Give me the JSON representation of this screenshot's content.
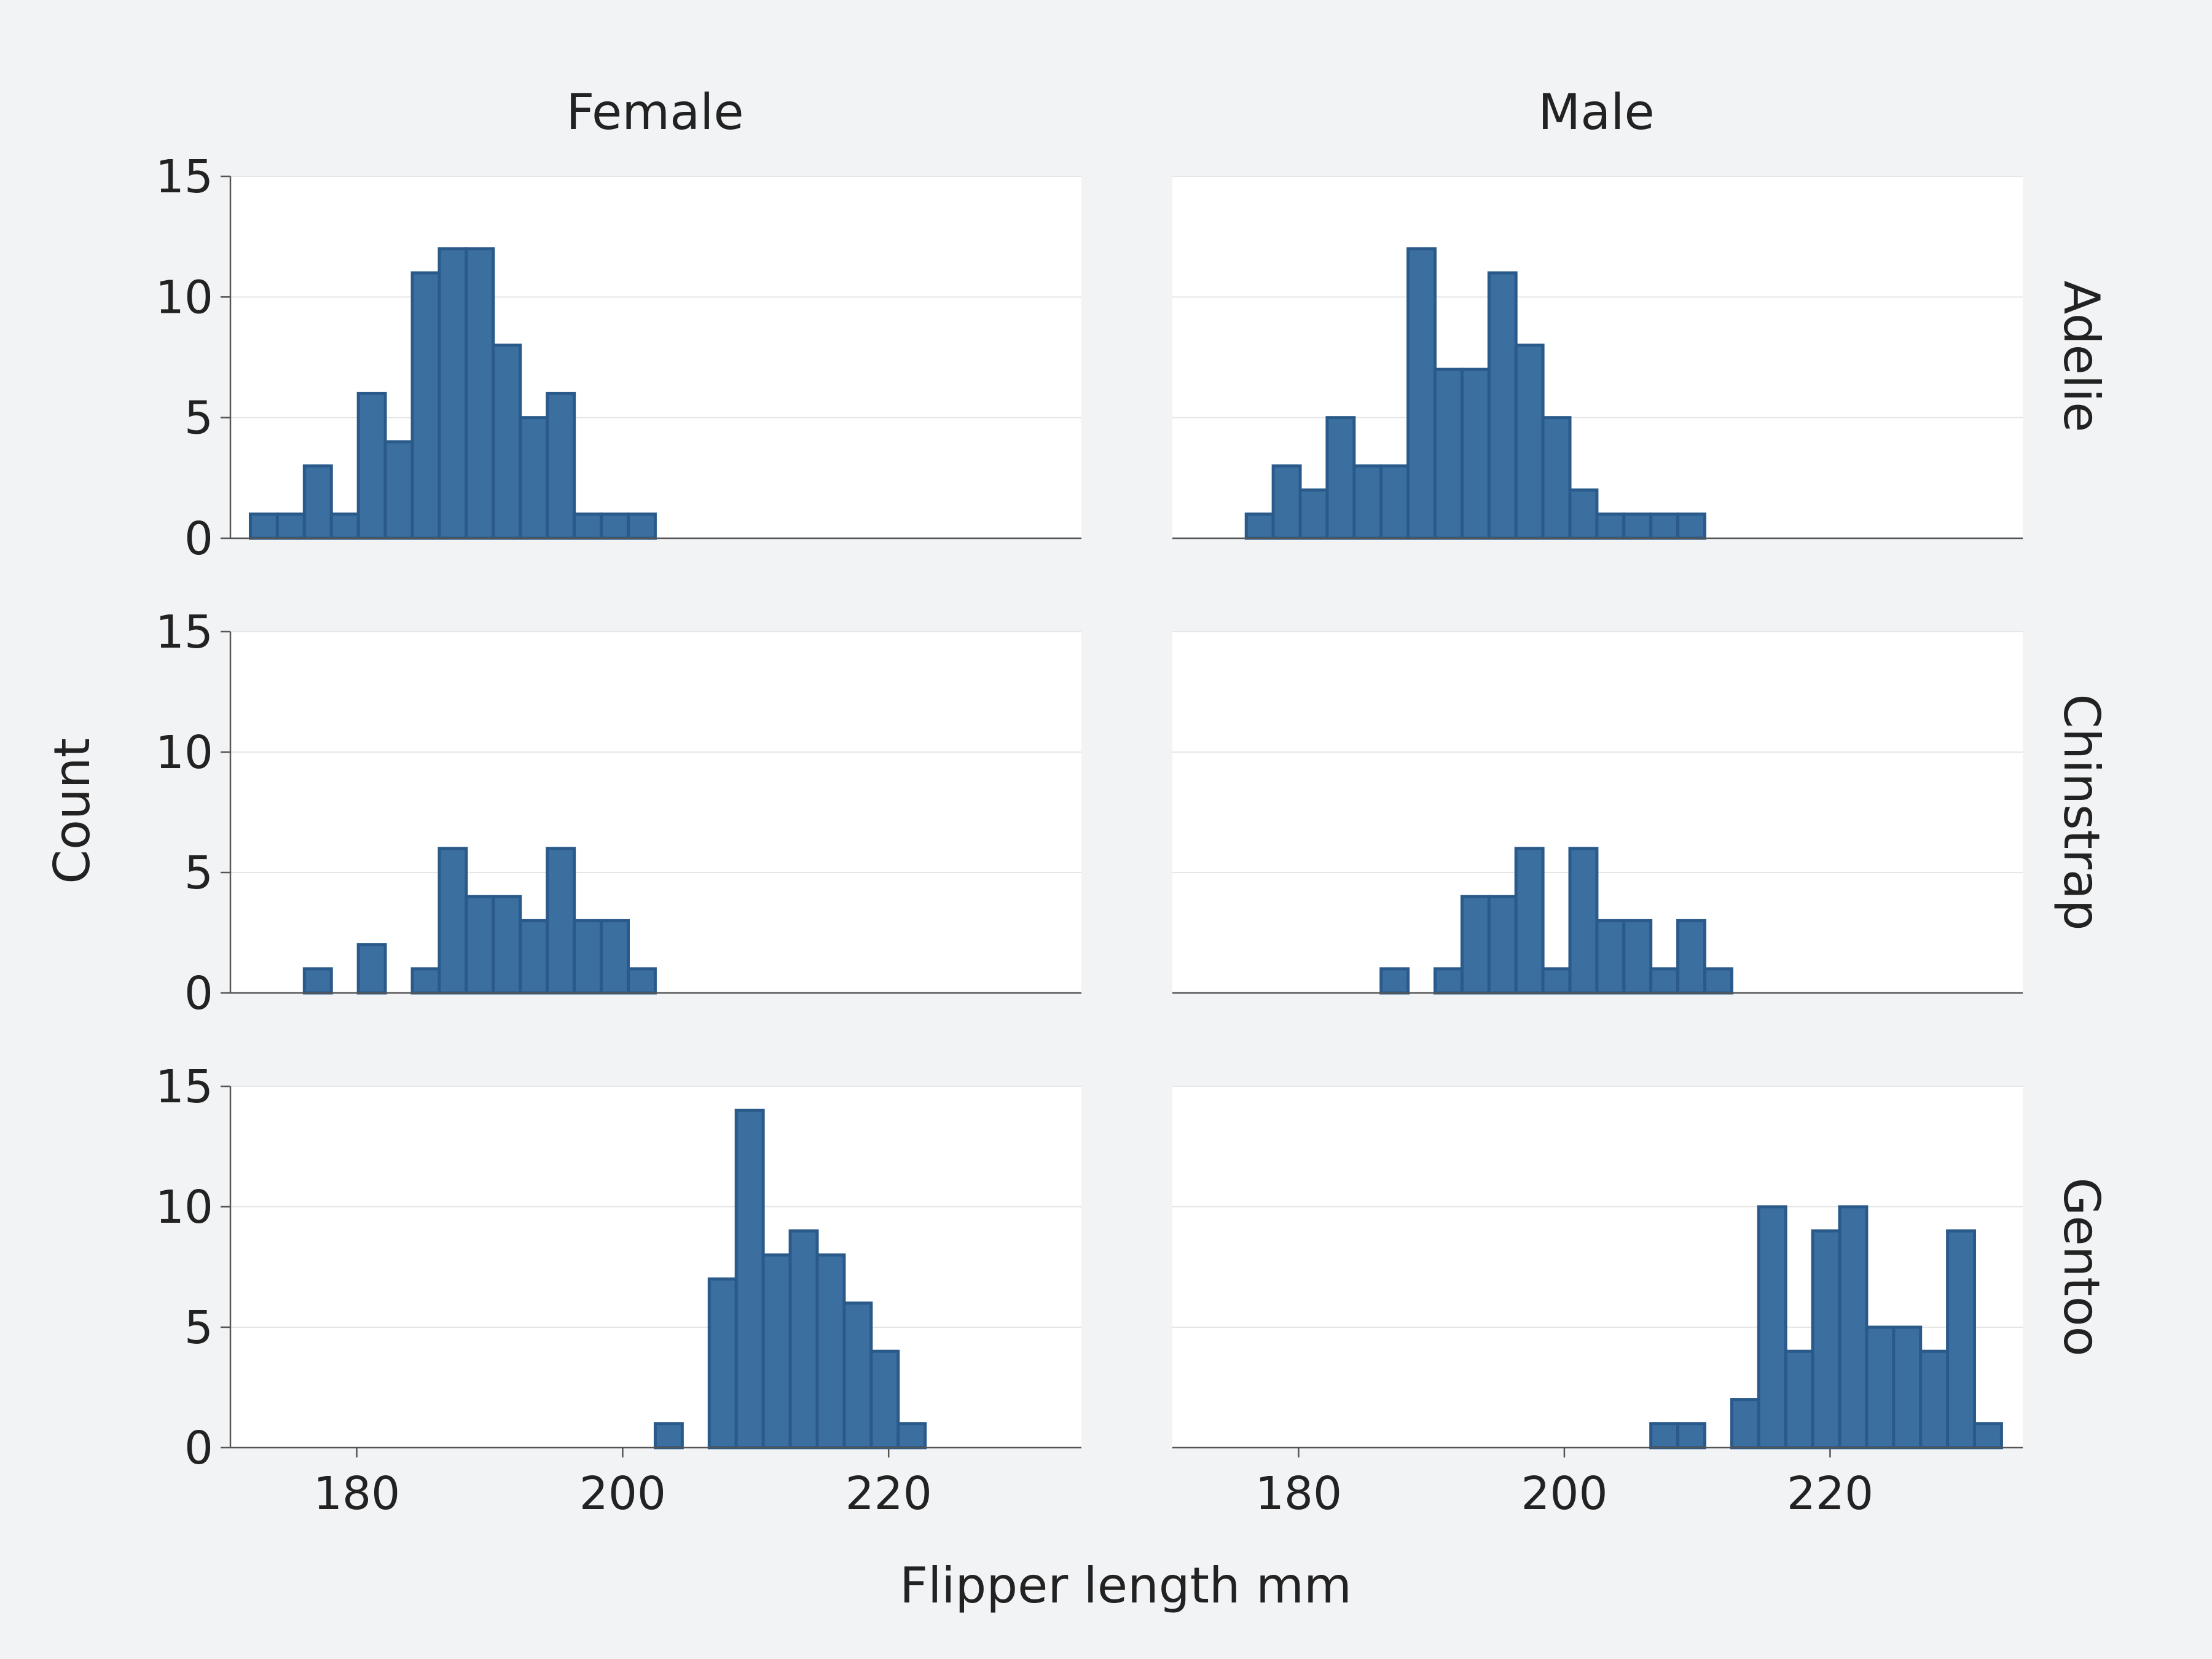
{
  "chart_data": {
    "type": "bar",
    "subtype": "faceted-histogram",
    "xlabel": "Flipper length mm",
    "ylabel": "Count",
    "ylim": [
      0,
      15
    ],
    "yticks": [
      0,
      5,
      10,
      15
    ],
    "xlim": [
      170.5,
      234.5
    ],
    "xticks": [
      180,
      200,
      220
    ],
    "bin_start": 172.0,
    "bin_width": 2.03,
    "bar_color": "#3b6fa0",
    "bar_edge_color": "#2a5a8a",
    "background_color": "#f2f3f5",
    "panel_color": "#ffffff",
    "grid": true,
    "columns": [
      "Female",
      "Male"
    ],
    "rows": [
      "Adelie",
      "Chinstrap",
      "Gentoo"
    ],
    "panels": [
      {
        "row": "Adelie",
        "col": "Female",
        "counts": [
          1,
          1,
          3,
          1,
          6,
          4,
          11,
          12,
          12,
          8,
          5,
          6,
          1,
          1,
          1,
          0,
          0,
          0,
          0,
          0,
          0,
          0,
          0,
          0,
          0,
          0,
          0,
          0,
          0,
          0
        ]
      },
      {
        "row": "Adelie",
        "col": "Male",
        "counts": [
          0,
          0,
          1,
          3,
          2,
          5,
          3,
          3,
          12,
          7,
          7,
          11,
          8,
          5,
          2,
          1,
          1,
          1,
          1,
          0,
          0,
          0,
          0,
          0,
          0,
          0,
          0,
          0,
          0,
          0
        ]
      },
      {
        "row": "Chinstrap",
        "col": "Female",
        "counts": [
          0,
          0,
          1,
          0,
          2,
          0,
          1,
          6,
          4,
          4,
          3,
          6,
          3,
          3,
          1,
          0,
          0,
          0,
          0,
          0,
          0,
          0,
          0,
          0,
          0,
          0,
          0,
          0,
          0,
          0
        ]
      },
      {
        "row": "Chinstrap",
        "col": "Male",
        "counts": [
          0,
          0,
          0,
          0,
          0,
          0,
          0,
          1,
          0,
          1,
          4,
          4,
          6,
          1,
          6,
          3,
          3,
          1,
          3,
          1,
          0,
          0,
          0,
          0,
          0,
          0,
          0,
          0,
          0,
          0
        ]
      },
      {
        "row": "Gentoo",
        "col": "Female",
        "counts": [
          0,
          0,
          0,
          0,
          0,
          0,
          0,
          0,
          0,
          0,
          0,
          0,
          0,
          0,
          0,
          1,
          0,
          7,
          14,
          8,
          9,
          8,
          6,
          4,
          1,
          0,
          0,
          0,
          0,
          0
        ]
      },
      {
        "row": "Gentoo",
        "col": "Male",
        "counts": [
          0,
          0,
          0,
          0,
          0,
          0,
          0,
          0,
          0,
          0,
          0,
          0,
          0,
          0,
          0,
          0,
          0,
          1,
          1,
          0,
          2,
          10,
          4,
          9,
          10,
          5,
          5,
          4,
          9,
          1
        ]
      }
    ]
  }
}
